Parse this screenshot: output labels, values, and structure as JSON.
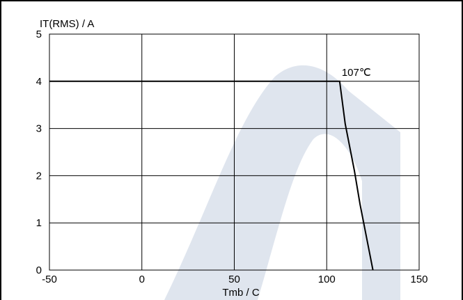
{
  "chart_data": {
    "type": "line",
    "title": "",
    "xlabel": "Tmb / C",
    "ylabel": "IT(RMS) / A",
    "xlim": [
      -50,
      150
    ],
    "ylim": [
      0,
      5
    ],
    "x_ticks": [
      -50,
      0,
      50,
      100,
      150
    ],
    "y_ticks": [
      0,
      1,
      2,
      3,
      4,
      5
    ],
    "x_tick_labels": [
      "-50",
      "0",
      "50",
      "100",
      "150"
    ],
    "y_tick_labels": [
      "0",
      "1",
      "2",
      "3",
      "4",
      "5"
    ],
    "grid": true,
    "series": [
      {
        "x": [
          -50,
          107,
          110,
          115,
          118,
          120,
          122,
          125
        ],
        "y": [
          4,
          4,
          3.1,
          2.1,
          1.4,
          1.0,
          0.6,
          0
        ]
      }
    ],
    "annotations": [
      {
        "text": "107℃",
        "x": 107,
        "y": 4
      }
    ],
    "colors": {
      "line": "#000000",
      "grid": "#000000",
      "watermark": "#dfe5ee"
    }
  }
}
